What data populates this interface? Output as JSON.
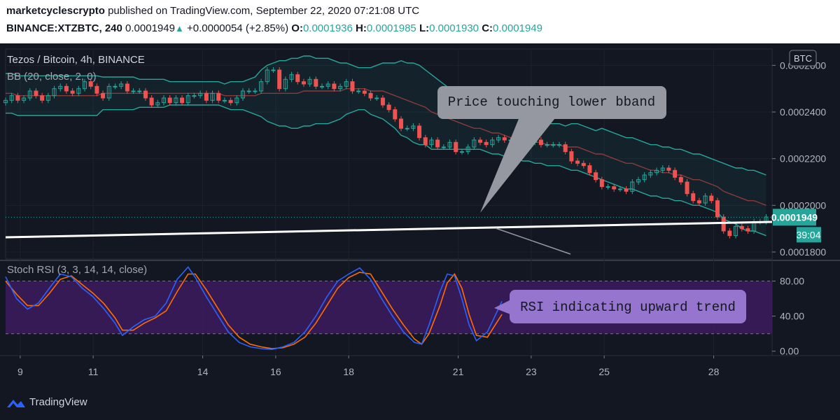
{
  "header": {
    "publisher": "marketcyclescrypto",
    "published_text": " published on TradingView.com, September 22, 2020 07:21:08 UTC",
    "symbol": "BINANCE:XTZBTC, 240",
    "last": "0.0001949",
    "change": "+0.0000054 (+2.85%)",
    "o_label": "O:",
    "o": "0.0001936",
    "h_label": "H:",
    "h": "0.0001985",
    "l_label": "L:",
    "l": "0.0001930",
    "c_label": "C:",
    "c": "0.0001949"
  },
  "chart_data": {
    "type": "candlestick",
    "title": "Tezos / Bitcoin, 4h, BINANCE",
    "indicator_label": "BB (20, close, 2, 0)",
    "currency_label": "BTC",
    "price_ylim": [
      0.000177,
      0.000267
    ],
    "price_ticks": [
      "0.0002600",
      "0.0002400",
      "0.0002200",
      "0.0002000",
      "0.0001800"
    ],
    "price_tick_values": [
      0.00026,
      0.00024,
      0.00022,
      0.0002,
      0.00018
    ],
    "last_price_label": "0.0001949",
    "last_price": 0.0001949,
    "countdown_label": "39:04",
    "x_range": [
      8.6,
      29.6
    ],
    "x_tick_labels": [
      "9",
      "11",
      "14",
      "16",
      "18",
      "21",
      "23",
      "25",
      "28"
    ],
    "x_tick_values": [
      9,
      11,
      14,
      16,
      18,
      21,
      23,
      25,
      28
    ],
    "candles_start_day": 8.6,
    "candles_step_days": 0.1667,
    "candle_closes": [
      0.000245,
      0.000247,
      0.000245,
      0.000246,
      0.000249,
      0.000247,
      0.000245,
      0.000247,
      0.00025,
      0.000251,
      0.000249,
      0.000248,
      0.00025,
      0.000253,
      0.000251,
      0.000248,
      0.000246,
      0.000251,
      0.000251,
      0.000252,
      0.000249,
      0.000249,
      0.000249,
      0.000246,
      0.000243,
      0.000244,
      0.000246,
      0.000244,
      0.000246,
      0.000244,
      0.000247,
      0.000247,
      0.000248,
      0.000245,
      0.000248,
      0.000245,
      0.000245,
      0.000244,
      0.000246,
      0.000249,
      0.000249,
      0.000249,
      0.000253,
      0.000258,
      0.000258,
      0.00025,
      0.000254,
      0.000256,
      0.000253,
      0.000252,
      0.000254,
      0.000251,
      0.000251,
      0.000252,
      0.00025,
      0.000251,
      0.000253,
      0.000249,
      0.000249,
      0.000248,
      0.000246,
      0.000246,
      0.000243,
      0.000241,
      0.000237,
      0.000233,
      0.000233,
      0.000234,
      0.000229,
      0.000226,
      0.000228,
      0.000225,
      0.000225,
      0.000227,
      0.000223,
      0.000223,
      0.000225,
      0.000228,
      0.000227,
      0.000226,
      0.000228,
      0.000229,
      0.000228,
      0.000228,
      0.000227,
      0.000226,
      0.000227,
      0.000228,
      0.000226,
      0.000226,
      0.000226,
      0.000226,
      0.000223,
      0.000219,
      0.000218,
      0.000217,
      0.000214,
      0.000211,
      0.000208,
      0.000208,
      0.000207,
      0.000207,
      0.000206,
      0.00021,
      0.000211,
      0.000213,
      0.000214,
      0.000215,
      0.000216,
      0.000215,
      0.000212,
      0.00021,
      0.000205,
      0.000202,
      0.000201,
      0.000204,
      0.000202,
      0.000195,
      0.000189,
      0.000187,
      0.000191,
      0.00019,
      0.000189,
      0.000193,
      0.000193,
      0.000195
    ],
    "bb_basis": [
      0.000248,
      0.000248,
      0.000247,
      0.000247,
      0.000247,
      0.000247,
      0.000247,
      0.000247,
      0.000247,
      0.000247,
      0.000247,
      0.000247,
      0.000247,
      0.000247,
      0.000247,
      0.000247,
      0.000248,
      0.000248,
      0.000248,
      0.000248,
      0.000248,
      0.000248,
      0.000248,
      0.000248,
      0.000248,
      0.000248,
      0.000248,
      0.000248,
      0.000248,
      0.000248,
      0.000248,
      0.000248,
      0.000248,
      0.000248,
      0.000248,
      0.000248,
      0.000247,
      0.000247,
      0.000247,
      0.000247,
      0.000247,
      0.000247,
      0.000248,
      0.000248,
      0.000248,
      0.000248,
      0.000248,
      0.000248,
      0.000248,
      0.000249,
      0.000249,
      0.000249,
      0.000249,
      0.000249,
      0.000249,
      0.000249,
      0.00025,
      0.00025,
      0.00025,
      0.00025,
      0.000249,
      0.000249,
      0.000249,
      0.000248,
      0.000247,
      0.000246,
      0.000245,
      0.000244,
      0.000243,
      0.000242,
      0.00024,
      0.000239,
      0.000238,
      0.000237,
      0.000236,
      0.000235,
      0.000234,
      0.000233,
      0.000233,
      0.000232,
      0.000231,
      0.000231,
      0.00023,
      0.000229,
      0.000229,
      0.000228,
      0.000228,
      0.000227,
      0.000227,
      0.000226,
      0.000226,
      0.000226,
      0.000225,
      0.000225,
      0.000225,
      0.000224,
      0.000223,
      0.000222,
      0.000222,
      0.000221,
      0.00022,
      0.000219,
      0.000218,
      0.000218,
      0.000217,
      0.000216,
      0.000215,
      0.000215,
      0.000214,
      0.000214,
      0.000213,
      0.000213,
      0.000212,
      0.000211,
      0.000211,
      0.00021,
      0.000209,
      0.000208,
      0.000206,
      0.000205,
      0.000204,
      0.000203,
      0.000202,
      0.000202,
      0.000201,
      0.0002
    ],
    "bb_width": [
      8.5e-06,
      8.5e-06,
      8.5e-06,
      8.5e-06,
      8.5e-06,
      8.5e-06,
      8.5e-06,
      8.5e-06,
      8.5e-06,
      8.5e-06,
      8.5e-06,
      8.5e-06,
      8.5e-06,
      8.5e-06,
      8.5e-06,
      8.5e-06,
      7e-06,
      7e-06,
      7e-06,
      7e-06,
      7e-06,
      7e-06,
      6e-06,
      6e-06,
      6e-06,
      6e-06,
      6e-06,
      5e-06,
      5e-06,
      5e-06,
      5e-06,
      5e-06,
      5e-06,
      5e-06,
      5e-06,
      5e-06,
      5e-06,
      6e-06,
      6e-06,
      6e-06,
      7e-06,
      8e-06,
      1e-05,
      1.2e-05,
      1.3e-05,
      1.4e-05,
      1.4e-05,
      1.5e-05,
      1.5e-05,
      1.5e-05,
      1.5e-05,
      1.4e-05,
      1.4e-05,
      1.4e-05,
      1.3e-05,
      1.2e-05,
      1.1e-05,
      1e-05,
      9e-06,
      9e-06,
      1e-05,
      1.1e-05,
      1.2e-05,
      1.3e-05,
      1.4e-05,
      1.6e-05,
      1.6e-05,
      1.7e-05,
      1.7e-05,
      1.6e-05,
      1.6e-05,
      1.5e-05,
      1.4e-05,
      1.3e-05,
      1.2e-05,
      1.1e-05,
      1e-05,
      9e-06,
      9e-06,
      9e-06,
      9e-06,
      9e-06,
      9e-06,
      9e-06,
      9e-06,
      9e-06,
      9e-06,
      9e-06,
      9e-06,
      9e-06,
      9e-06,
      9e-06,
      9e-06,
      1e-05,
      1e-05,
      1e-05,
      1e-05,
      1e-05,
      1.1e-05,
      1.1e-05,
      1.1e-05,
      1.1e-05,
      1.1e-05,
      1.1e-05,
      1.1e-05,
      1.1e-05,
      1.1e-05,
      1.1e-05,
      1.1e-05,
      1.1e-05,
      1.1e-05,
      1.1e-05,
      1.1e-05,
      1.1e-05,
      1.1e-05,
      1.1e-05,
      1.1e-05,
      1.1e-05,
      1.2e-05,
      1.2e-05,
      1.2e-05,
      1.3e-05,
      1.3e-05,
      1.3e-05,
      1.3e-05,
      1.3e-05
    ],
    "annotation_price": "Price touching lower bband",
    "rsi_label": "Stoch RSI (3, 3, 14, 14, close)",
    "rsi_ylim": [
      -5,
      102
    ],
    "rsi_band": [
      20,
      80
    ],
    "rsi_ticks": [
      "80.00",
      "40.00",
      "0.00"
    ],
    "rsi_tick_values": [
      80,
      40,
      0
    ],
    "annotation_rsi": "RSI indicating upward trend",
    "stoch_k": [
      [
        8.6,
        85
      ],
      [
        8.9,
        60
      ],
      [
        9.2,
        48
      ],
      [
        9.5,
        55
      ],
      [
        9.8,
        72
      ],
      [
        10.1,
        88
      ],
      [
        10.4,
        85
      ],
      [
        10.7,
        72
      ],
      [
        11.0,
        62
      ],
      [
        11.3,
        48
      ],
      [
        11.6,
        32
      ],
      [
        11.8,
        18
      ],
      [
        12.1,
        28
      ],
      [
        12.4,
        36
      ],
      [
        12.7,
        40
      ],
      [
        13.0,
        55
      ],
      [
        13.3,
        82
      ],
      [
        13.6,
        96
      ],
      [
        13.8,
        84
      ],
      [
        14.1,
        62
      ],
      [
        14.4,
        42
      ],
      [
        14.7,
        22
      ],
      [
        15.0,
        10
      ],
      [
        15.3,
        5
      ],
      [
        15.6,
        3
      ],
      [
        15.9,
        2
      ],
      [
        16.2,
        5
      ],
      [
        16.5,
        10
      ],
      [
        16.8,
        22
      ],
      [
        17.1,
        40
      ],
      [
        17.4,
        62
      ],
      [
        17.7,
        80
      ],
      [
        18.0,
        88
      ],
      [
        18.3,
        95
      ],
      [
        18.6,
        82
      ],
      [
        18.9,
        60
      ],
      [
        19.2,
        40
      ],
      [
        19.5,
        22
      ],
      [
        19.8,
        10
      ],
      [
        20.0,
        8
      ],
      [
        20.2,
        30
      ],
      [
        20.5,
        68
      ],
      [
        20.7,
        88
      ],
      [
        20.9,
        86
      ],
      [
        21.1,
        60
      ],
      [
        21.3,
        30
      ],
      [
        21.5,
        12
      ],
      [
        21.8,
        22
      ],
      [
        22.2,
        57
      ]
    ],
    "stoch_d": [
      [
        8.6,
        80
      ],
      [
        8.9,
        65
      ],
      [
        9.2,
        52
      ],
      [
        9.5,
        52
      ],
      [
        9.8,
        66
      ],
      [
        10.1,
        82
      ],
      [
        10.4,
        86
      ],
      [
        10.7,
        76
      ],
      [
        11.0,
        66
      ],
      [
        11.3,
        54
      ],
      [
        11.6,
        38
      ],
      [
        11.8,
        24
      ],
      [
        12.1,
        24
      ],
      [
        12.4,
        32
      ],
      [
        12.7,
        38
      ],
      [
        13.0,
        46
      ],
      [
        13.3,
        68
      ],
      [
        13.6,
        88
      ],
      [
        13.8,
        88
      ],
      [
        14.1,
        70
      ],
      [
        14.4,
        50
      ],
      [
        14.7,
        30
      ],
      [
        15.0,
        16
      ],
      [
        15.3,
        8
      ],
      [
        15.6,
        5
      ],
      [
        15.9,
        3
      ],
      [
        16.2,
        4
      ],
      [
        16.5,
        8
      ],
      [
        16.8,
        16
      ],
      [
        17.1,
        32
      ],
      [
        17.4,
        52
      ],
      [
        17.7,
        72
      ],
      [
        18.0,
        84
      ],
      [
        18.3,
        90
      ],
      [
        18.6,
        88
      ],
      [
        18.9,
        68
      ],
      [
        19.2,
        48
      ],
      [
        19.5,
        30
      ],
      [
        19.8,
        14
      ],
      [
        20.0,
        8
      ],
      [
        20.2,
        20
      ],
      [
        20.5,
        52
      ],
      [
        20.7,
        78
      ],
      [
        20.9,
        88
      ],
      [
        21.1,
        72
      ],
      [
        21.3,
        42
      ],
      [
        21.5,
        18
      ],
      [
        21.8,
        16
      ],
      [
        22.2,
        42
      ]
    ]
  },
  "footer": {
    "brand": "TradingView"
  },
  "colors": {
    "bull": "#26a69a",
    "bear": "#ef5350",
    "bb": "#26a69a",
    "basis": "#8b3a3a",
    "k": "#2962ff",
    "d": "#ff6d00",
    "rsi_band": "#3d1b5e",
    "bg": "#131722"
  }
}
